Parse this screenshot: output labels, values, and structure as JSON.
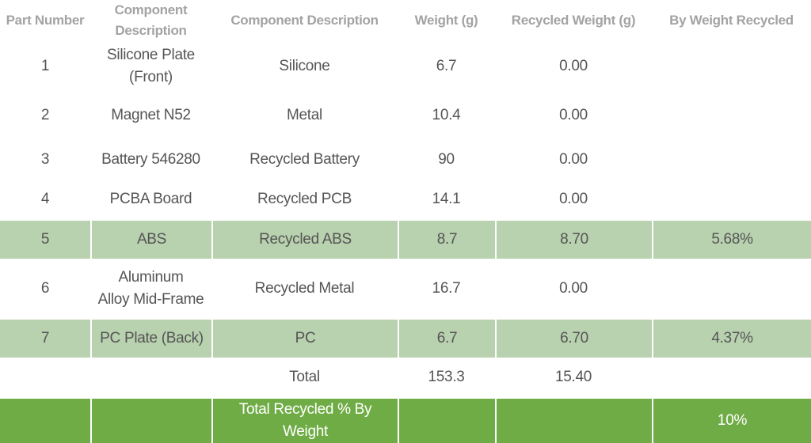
{
  "headers": [
    "Part Number",
    "Component Description",
    "Component Description",
    "Weight (g)",
    "Recycled Weight (g)",
    "By Weight Recycled"
  ],
  "rows": [
    {
      "part": "1",
      "component": "Silicone Plate\n(Front)",
      "description": "Silicone",
      "weight": "6.7",
      "recycled_weight": "0.00",
      "pct": ""
    },
    {
      "part": "2",
      "component": "Magnet N52",
      "description": "Metal",
      "weight": "10.4",
      "recycled_weight": "0.00",
      "pct": ""
    },
    {
      "part": "3",
      "component": "Battery 546280",
      "description": "Recycled Battery",
      "weight": "90",
      "recycled_weight": "0.00",
      "pct": ""
    },
    {
      "part": "4",
      "component": "PCBA Board",
      "description": "Recycled PCB",
      "weight": "14.1",
      "recycled_weight": "0.00",
      "pct": ""
    },
    {
      "part": "5",
      "component": "ABS",
      "description": "Recycled ABS",
      "weight": "8.7",
      "recycled_weight": "8.70",
      "pct": "5.68%"
    },
    {
      "part": "6",
      "component": "Aluminum\nAlloy Mid-Frame",
      "description": "Recycled Metal",
      "weight": "16.7",
      "recycled_weight": "0.00",
      "pct": ""
    },
    {
      "part": "7",
      "component": "PC Plate (Back)",
      "description": "PC",
      "weight": "6.7",
      "recycled_weight": "6.70",
      "pct": "4.37%"
    }
  ],
  "total": {
    "label": "Total",
    "weight": "153.3",
    "recycled_weight": "15.40"
  },
  "summary": {
    "label": "Total Recycled % By Weight",
    "pct": "10%"
  },
  "colors": {
    "highlight_row": "#b8d1ae",
    "summary_row": "#6fac46",
    "header_text": "#a3a3a3",
    "body_text": "#555555"
  }
}
